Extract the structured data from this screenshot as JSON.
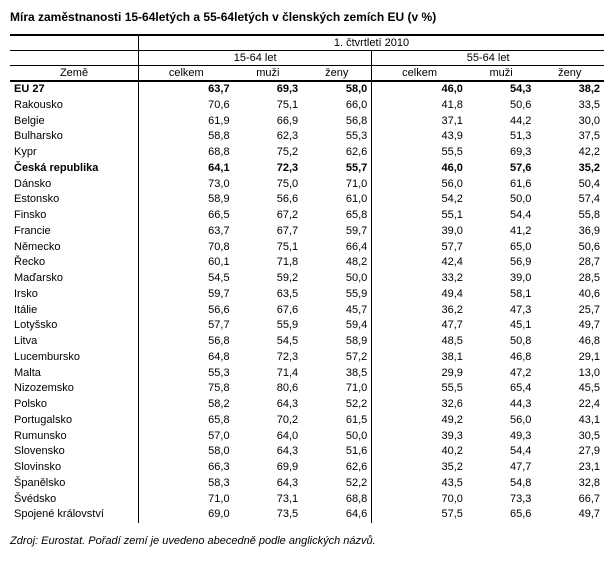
{
  "title": "Míra zaměstnanosti 15-64letých a 55-64letých v členských zemích EU (v %)",
  "period": "1. čtvrtletí 2010",
  "country_label": "Země",
  "group1": "15-64 let",
  "group2": "55-64 let",
  "cols": {
    "celkem": "celkem",
    "muzi": "muži",
    "zeny": "ženy"
  },
  "footnote": "Zdroj: Eurostat. Pořadí zemí je uvedeno abecedně podle anglických názvů.",
  "rows": [
    {
      "bold": true,
      "name": "EU 27",
      "v": [
        "63,7",
        "69,3",
        "58,0",
        "46,0",
        "54,3",
        "38,2"
      ]
    },
    {
      "bold": false,
      "name": "Rakousko",
      "v": [
        "70,6",
        "75,1",
        "66,0",
        "41,8",
        "50,6",
        "33,5"
      ]
    },
    {
      "bold": false,
      "name": "Belgie",
      "v": [
        "61,9",
        "66,9",
        "56,8",
        "37,1",
        "44,2",
        "30,0"
      ]
    },
    {
      "bold": false,
      "name": "Bulharsko",
      "v": [
        "58,8",
        "62,3",
        "55,3",
        "43,9",
        "51,3",
        "37,5"
      ]
    },
    {
      "bold": false,
      "name": "Kypr",
      "v": [
        "68,8",
        "75,2",
        "62,6",
        "55,5",
        "69,3",
        "42,2"
      ]
    },
    {
      "bold": true,
      "name": "Česká republika",
      "v": [
        "64,1",
        "72,3",
        "55,7",
        "46,0",
        "57,6",
        "35,2"
      ]
    },
    {
      "bold": false,
      "name": "Dánsko",
      "v": [
        "73,0",
        "75,0",
        "71,0",
        "56,0",
        "61,6",
        "50,4"
      ]
    },
    {
      "bold": false,
      "name": "Estonsko",
      "v": [
        "58,9",
        "56,6",
        "61,0",
        "54,2",
        "50,0",
        "57,4"
      ]
    },
    {
      "bold": false,
      "name": "Finsko",
      "v": [
        "66,5",
        "67,2",
        "65,8",
        "55,1",
        "54,4",
        "55,8"
      ]
    },
    {
      "bold": false,
      "name": "Francie",
      "v": [
        "63,7",
        "67,7",
        "59,7",
        "39,0",
        "41,2",
        "36,9"
      ]
    },
    {
      "bold": false,
      "name": "Německo",
      "v": [
        "70,8",
        "75,1",
        "66,4",
        "57,7",
        "65,0",
        "50,6"
      ]
    },
    {
      "bold": false,
      "name": "Řecko",
      "v": [
        "60,1",
        "71,8",
        "48,2",
        "42,4",
        "56,9",
        "28,7"
      ]
    },
    {
      "bold": false,
      "name": "Maďarsko",
      "v": [
        "54,5",
        "59,2",
        "50,0",
        "33,2",
        "39,0",
        "28,5"
      ]
    },
    {
      "bold": false,
      "name": "Irsko",
      "v": [
        "59,7",
        "63,5",
        "55,9",
        "49,4",
        "58,1",
        "40,6"
      ]
    },
    {
      "bold": false,
      "name": "Itálie",
      "v": [
        "56,6",
        "67,6",
        "45,7",
        "36,2",
        "47,3",
        "25,7"
      ]
    },
    {
      "bold": false,
      "name": "Lotyšsko",
      "v": [
        "57,7",
        "55,9",
        "59,4",
        "47,7",
        "45,1",
        "49,7"
      ]
    },
    {
      "bold": false,
      "name": "Litva",
      "v": [
        "56,8",
        "54,5",
        "58,9",
        "48,5",
        "50,8",
        "46,8"
      ]
    },
    {
      "bold": false,
      "name": "Lucembursko",
      "v": [
        "64,8",
        "72,3",
        "57,2",
        "38,1",
        "46,8",
        "29,1"
      ]
    },
    {
      "bold": false,
      "name": "Malta",
      "v": [
        "55,3",
        "71,4",
        "38,5",
        "29,9",
        "47,2",
        "13,0"
      ]
    },
    {
      "bold": false,
      "name": "Nizozemsko",
      "v": [
        "75,8",
        "80,6",
        "71,0",
        "55,5",
        "65,4",
        "45,5"
      ]
    },
    {
      "bold": false,
      "name": "Polsko",
      "v": [
        "58,2",
        "64,3",
        "52,2",
        "32,6",
        "44,3",
        "22,4"
      ]
    },
    {
      "bold": false,
      "name": "Portugalsko",
      "v": [
        "65,8",
        "70,2",
        "61,5",
        "49,2",
        "56,0",
        "43,1"
      ]
    },
    {
      "bold": false,
      "name": "Rumunsko",
      "v": [
        "57,0",
        "64,0",
        "50,0",
        "39,3",
        "49,3",
        "30,5"
      ]
    },
    {
      "bold": false,
      "name": "Slovensko",
      "v": [
        "58,0",
        "64,3",
        "51,6",
        "40,2",
        "54,4",
        "27,9"
      ]
    },
    {
      "bold": false,
      "name": "Slovinsko",
      "v": [
        "66,3",
        "69,9",
        "62,6",
        "35,2",
        "47,7",
        "23,1"
      ]
    },
    {
      "bold": false,
      "name": "Španělsko",
      "v": [
        "58,3",
        "64,3",
        "52,2",
        "43,5",
        "54,8",
        "32,8"
      ]
    },
    {
      "bold": false,
      "name": "Švédsko",
      "v": [
        "71,0",
        "73,1",
        "68,8",
        "70,0",
        "73,3",
        "66,7"
      ]
    },
    {
      "bold": false,
      "name": "Spojené království",
      "v": [
        "69,0",
        "73,5",
        "64,6",
        "57,5",
        "65,6",
        "49,7"
      ]
    }
  ]
}
